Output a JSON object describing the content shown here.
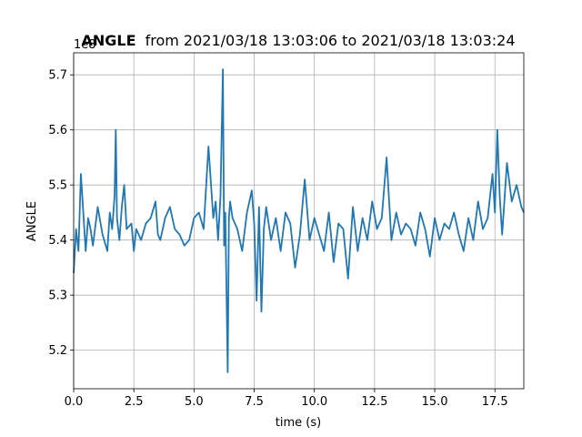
{
  "chart_data": {
    "type": "line",
    "title_bold": "ANGLE",
    "title_rest": "from 2021/03/18 13:03:06 to 2021/03/18 13:03:24",
    "xlabel": "time (s)",
    "ylabel": "ANGLE",
    "offset_text": "1e8",
    "xlim": [
      0,
      18.7
    ],
    "ylim": [
      5.13,
      5.74
    ],
    "xticks": [
      0.0,
      2.5,
      5.0,
      7.5,
      10.0,
      12.5,
      15.0,
      17.5
    ],
    "xtick_labels": [
      "0.0",
      "2.5",
      "5.0",
      "7.5",
      "10.0",
      "12.5",
      "15.0",
      "17.5"
    ],
    "yticks": [
      5.2,
      5.3,
      5.4,
      5.5,
      5.6,
      5.7
    ],
    "ytick_labels": [
      "5.2",
      "5.3",
      "5.4",
      "5.5",
      "5.6",
      "5.7"
    ],
    "grid": true,
    "line_color": "#1f77b4",
    "series": [
      {
        "x": [
          0.0,
          0.1,
          0.2,
          0.3,
          0.4,
          0.5,
          0.6,
          0.7,
          0.8,
          1.0,
          1.2,
          1.4,
          1.5,
          1.6,
          1.7,
          1.75,
          1.8,
          1.9,
          2.0,
          2.1,
          2.2,
          2.4,
          2.5,
          2.6,
          2.8,
          3.0,
          3.2,
          3.4,
          3.5,
          3.6,
          3.8,
          4.0,
          4.2,
          4.4,
          4.6,
          4.8,
          5.0,
          5.2,
          5.4,
          5.6,
          5.8,
          5.9,
          6.0,
          6.1,
          6.2,
          6.25,
          6.3,
          6.4,
          6.45,
          6.5,
          6.6,
          6.8,
          7.0,
          7.2,
          7.4,
          7.5,
          7.6,
          7.7,
          7.8,
          7.9,
          8.0,
          8.2,
          8.4,
          8.6,
          8.8,
          9.0,
          9.2,
          9.4,
          9.6,
          9.8,
          10.0,
          10.2,
          10.4,
          10.6,
          10.8,
          11.0,
          11.2,
          11.4,
          11.6,
          11.8,
          12.0,
          12.2,
          12.4,
          12.6,
          12.8,
          13.0,
          13.2,
          13.4,
          13.6,
          13.8,
          14.0,
          14.2,
          14.4,
          14.6,
          14.8,
          15.0,
          15.2,
          15.4,
          15.6,
          15.8,
          16.0,
          16.2,
          16.4,
          16.6,
          16.8,
          17.0,
          17.2,
          17.4,
          17.5,
          17.6,
          17.7,
          17.8,
          18.0,
          18.2,
          18.4,
          18.6,
          18.7
        ],
        "y": [
          5.34,
          5.42,
          5.38,
          5.52,
          5.45,
          5.38,
          5.44,
          5.42,
          5.39,
          5.46,
          5.41,
          5.38,
          5.45,
          5.42,
          5.48,
          5.6,
          5.44,
          5.4,
          5.46,
          5.5,
          5.42,
          5.43,
          5.38,
          5.42,
          5.4,
          5.43,
          5.44,
          5.47,
          5.41,
          5.4,
          5.44,
          5.46,
          5.42,
          5.41,
          5.39,
          5.4,
          5.44,
          5.45,
          5.42,
          5.57,
          5.44,
          5.47,
          5.4,
          5.48,
          5.71,
          5.39,
          5.45,
          5.16,
          5.44,
          5.47,
          5.44,
          5.42,
          5.38,
          5.45,
          5.49,
          5.43,
          5.29,
          5.46,
          5.27,
          5.42,
          5.46,
          5.4,
          5.44,
          5.38,
          5.45,
          5.43,
          5.35,
          5.41,
          5.51,
          5.4,
          5.44,
          5.41,
          5.38,
          5.45,
          5.36,
          5.43,
          5.42,
          5.33,
          5.46,
          5.38,
          5.44,
          5.4,
          5.47,
          5.42,
          5.44,
          5.55,
          5.4,
          5.45,
          5.41,
          5.43,
          5.42,
          5.39,
          5.45,
          5.42,
          5.37,
          5.44,
          5.4,
          5.43,
          5.42,
          5.45,
          5.41,
          5.38,
          5.44,
          5.4,
          5.47,
          5.42,
          5.44,
          5.52,
          5.45,
          5.6,
          5.48,
          5.41,
          5.54,
          5.47,
          5.5,
          5.46,
          5.45
        ]
      }
    ]
  }
}
